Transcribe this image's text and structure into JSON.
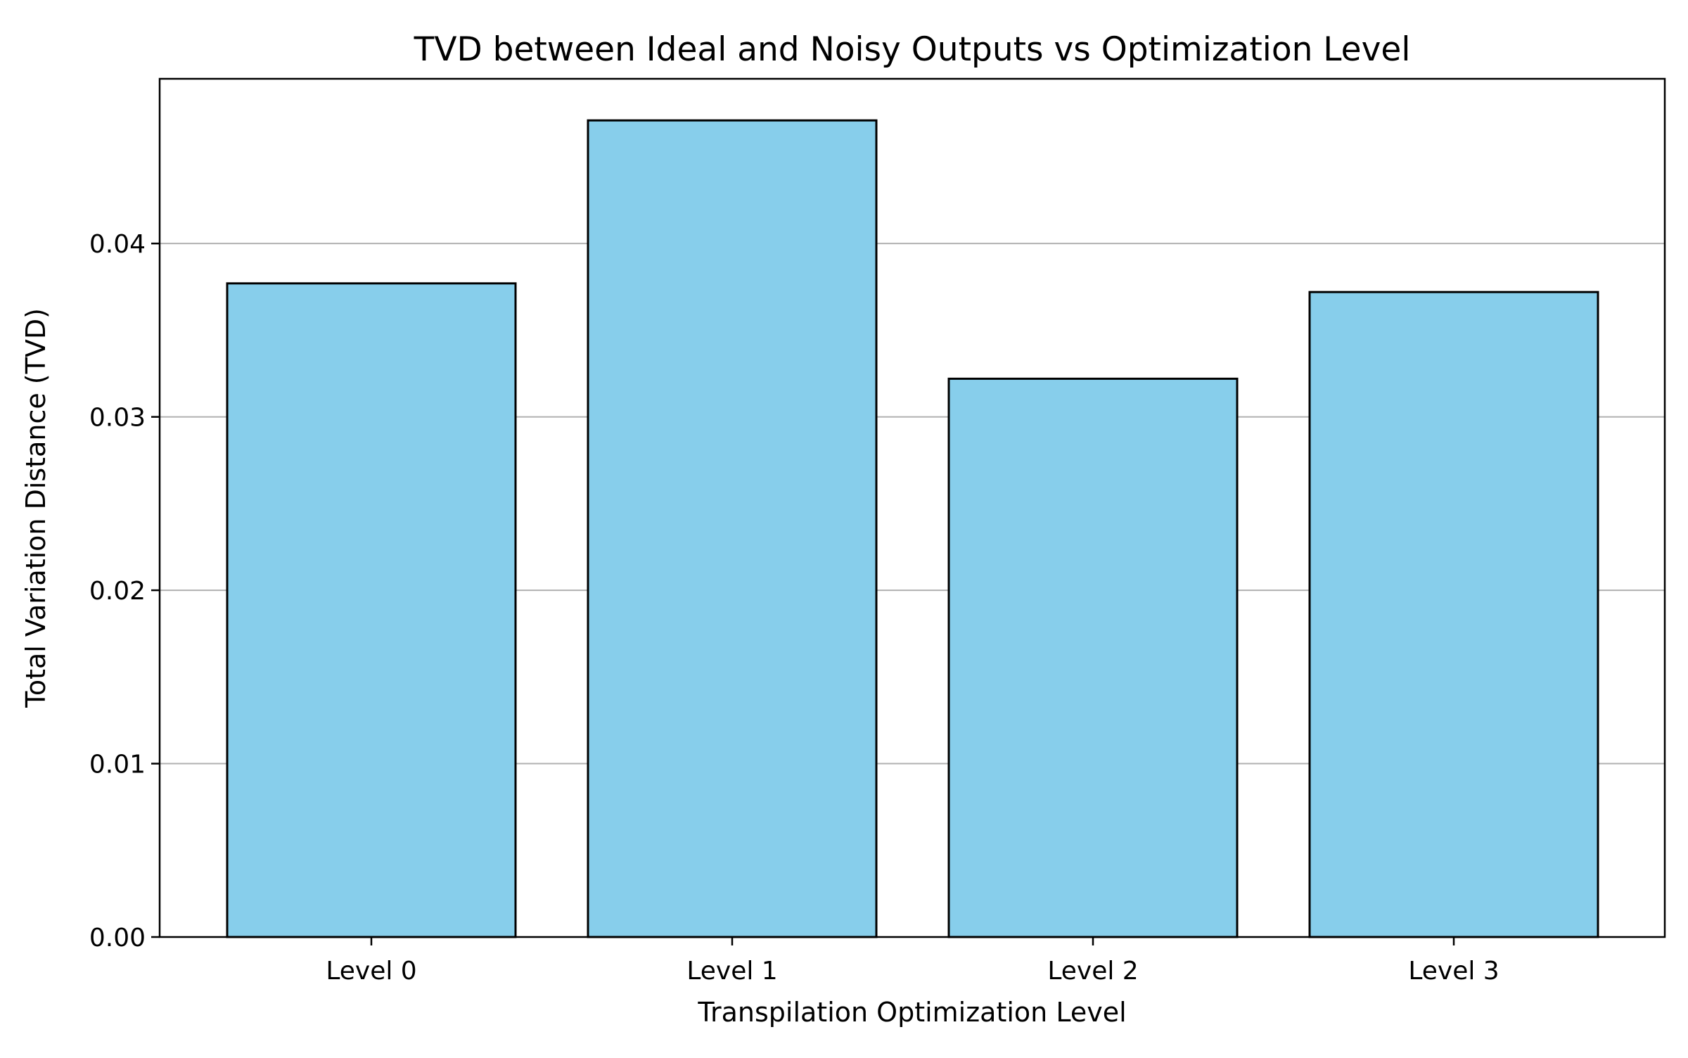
{
  "chart_data": {
    "type": "bar",
    "title": "TVD between Ideal and Noisy Outputs vs Optimization Level",
    "xlabel": "Transpilation Optimization Level",
    "ylabel": "Total Variation Distance (TVD)",
    "categories": [
      "Level 0",
      "Level 1",
      "Level 2",
      "Level 3"
    ],
    "values": [
      0.0377,
      0.0471,
      0.0322,
      0.0372
    ],
    "ylim": [
      0,
      0.0495
    ],
    "yticks": [
      0.0,
      0.01,
      0.02,
      0.03,
      0.04
    ],
    "ytick_labels": [
      "0.00",
      "0.01",
      "0.02",
      "0.03",
      "0.04"
    ],
    "grid": "horizontal",
    "colors": {
      "bar_fill": "#87CEEB",
      "bar_edge": "#000000",
      "grid": "#b0b0b0"
    }
  }
}
